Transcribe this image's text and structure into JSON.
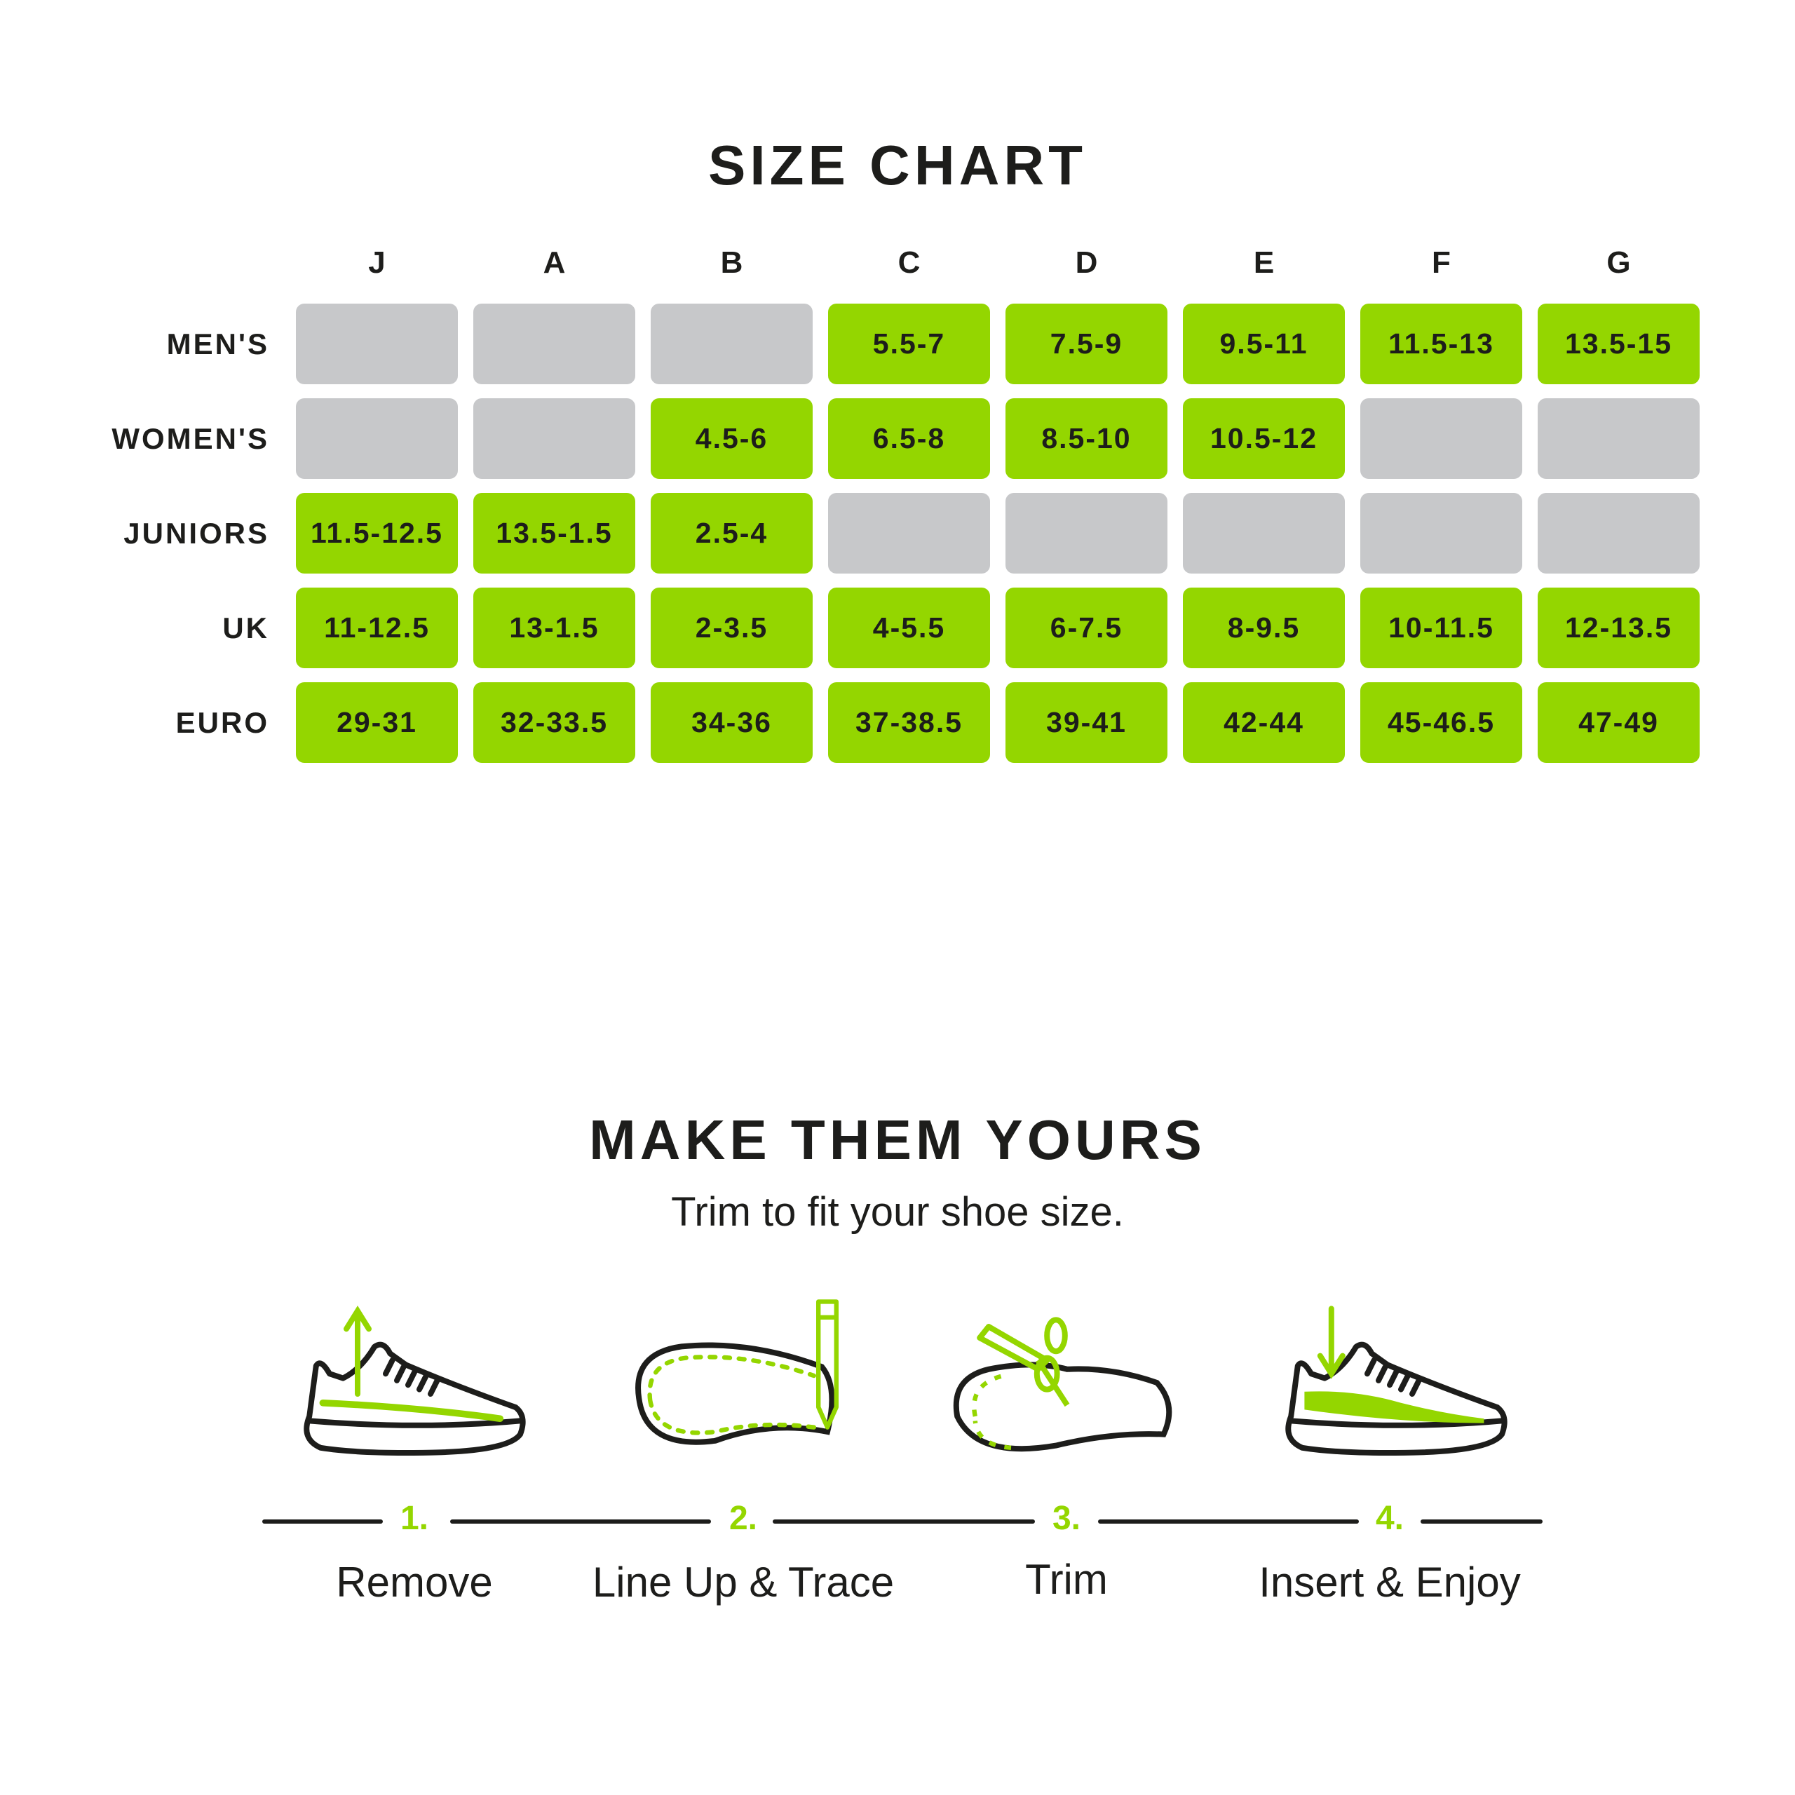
{
  "colors": {
    "accent": "#94d600",
    "empty": "#c7c8ca",
    "text": "#1d1d1b"
  },
  "size_chart": {
    "title": "SIZE CHART",
    "columns": [
      "J",
      "A",
      "B",
      "C",
      "D",
      "E",
      "F",
      "G"
    ],
    "rows": [
      {
        "label": "MEN'S",
        "cells": [
          null,
          null,
          null,
          "5.5-7",
          "7.5-9",
          "9.5-11",
          "11.5-13",
          "13.5-15"
        ]
      },
      {
        "label": "WOMEN'S",
        "cells": [
          null,
          null,
          "4.5-6",
          "6.5-8",
          "8.5-10",
          "10.5-12",
          null,
          null
        ]
      },
      {
        "label": "JUNIORS",
        "cells": [
          "11.5-12.5",
          "13.5-1.5",
          "2.5-4",
          null,
          null,
          null,
          null,
          null
        ]
      },
      {
        "label": "UK",
        "cells": [
          "11-12.5",
          "13-1.5",
          "2-3.5",
          "4-5.5",
          "6-7.5",
          "8-9.5",
          "10-11.5",
          "12-13.5"
        ]
      },
      {
        "label": "EURO",
        "cells": [
          "29-31",
          "32-33.5",
          "34-36",
          "37-38.5",
          "39-41",
          "42-44",
          "45-46.5",
          "47-49"
        ]
      }
    ]
  },
  "instructions": {
    "title": "MAKE THEM YOURS",
    "subtitle": "Trim to fit your shoe size.",
    "steps": [
      {
        "number": "1.",
        "label": "Remove",
        "icon": "shoe-remove-insole-icon"
      },
      {
        "number": "2.",
        "label": "Line Up & Trace",
        "icon": "insole-trace-pencil-icon"
      },
      {
        "number": "3.",
        "label": "Trim",
        "icon": "insole-scissors-icon"
      },
      {
        "number": "4.",
        "label": "Insert & Enjoy",
        "icon": "shoe-insert-insole-icon"
      }
    ]
  }
}
